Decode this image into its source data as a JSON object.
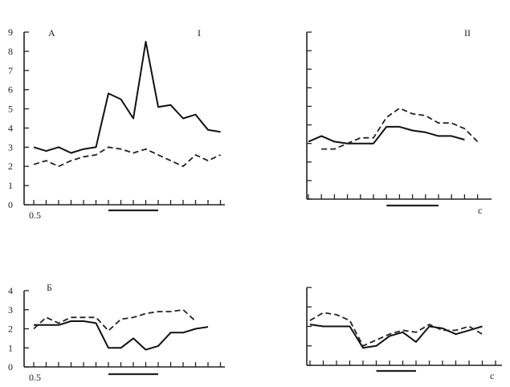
{
  "chart_data": [
    {
      "type": "line",
      "panel_label": "A",
      "roman_label": "I",
      "x_start_label": "0.5",
      "ylim": [
        0,
        9
      ],
      "yticks": [
        "0",
        "1",
        "2",
        "3",
        "4",
        "5",
        "6",
        "7",
        "8",
        "9"
      ],
      "x": [
        1,
        2,
        3,
        4,
        5,
        6,
        7,
        8,
        9,
        10,
        11,
        12,
        13,
        14,
        15,
        16,
        17,
        18,
        19
      ],
      "series": [
        {
          "style": "solid",
          "values": [
            3.0,
            2.8,
            3.0,
            2.7,
            2.9,
            3.0,
            5.8,
            5.5,
            4.5,
            8.5,
            5.1,
            5.2,
            4.5,
            4.7,
            3.9,
            3.8,
            null,
            null,
            null
          ]
        },
        {
          "style": "dashed",
          "values": [
            2.1,
            2.3,
            2.0,
            2.3,
            2.5,
            2.6,
            3.0,
            2.9,
            2.7,
            2.9,
            2.6,
            2.3,
            2.0,
            2.6,
            2.3,
            2.6,
            null,
            null,
            null
          ]
        }
      ],
      "stimulus_range": [
        7,
        11
      ]
    },
    {
      "type": "line",
      "panel_label": "",
      "roman_label": "II",
      "x_end_label": "c",
      "ylim": [
        0,
        9
      ],
      "x": [
        1,
        2,
        3,
        4,
        5,
        6,
        7,
        8,
        9,
        10,
        11,
        12,
        13,
        14,
        15,
        16,
        17,
        18,
        19
      ],
      "series": [
        {
          "style": "solid",
          "values": [
            3.1,
            3.4,
            3.1,
            3.0,
            3.0,
            3.0,
            3.9,
            3.9,
            3.7,
            3.6,
            3.4,
            3.4,
            3.2,
            null,
            null,
            null,
            null,
            null,
            null
          ]
        },
        {
          "style": "dashed",
          "values": [
            null,
            2.7,
            2.7,
            3.0,
            3.3,
            3.3,
            4.4,
            4.9,
            4.6,
            4.5,
            4.1,
            4.1,
            3.8,
            3.1,
            null,
            null,
            null,
            null,
            null
          ]
        }
      ],
      "stimulus_range": [
        7,
        11
      ]
    },
    {
      "type": "line",
      "panel_label": "Б",
      "x_start_label": "0.5",
      "ylim": [
        0,
        4
      ],
      "yticks": [
        "0",
        "1",
        "2",
        "3",
        "4"
      ],
      "x": [
        1,
        2,
        3,
        4,
        5,
        6,
        7,
        8,
        9,
        10,
        11,
        12,
        13,
        14,
        15,
        16,
        17,
        18,
        19
      ],
      "series": [
        {
          "style": "solid",
          "values": [
            2.2,
            2.2,
            2.2,
            2.4,
            2.4,
            2.3,
            1.0,
            1.0,
            1.5,
            0.9,
            1.1,
            1.8,
            1.8,
            2.0,
            2.1,
            null,
            null,
            null,
            null
          ]
        },
        {
          "style": "dashed",
          "values": [
            2.0,
            2.6,
            2.3,
            2.6,
            2.6,
            2.6,
            1.9,
            2.5,
            2.6,
            2.8,
            2.9,
            2.9,
            3.0,
            2.4,
            null,
            null,
            null,
            null,
            null
          ]
        }
      ],
      "stimulus_range": [
        7,
        11
      ]
    },
    {
      "type": "line",
      "panel_label": "",
      "x_end_label": "c",
      "ylim": [
        0,
        4
      ],
      "x": [
        1,
        2,
        3,
        4,
        5,
        6,
        7,
        8,
        9,
        10,
        11,
        12,
        13,
        14,
        15,
        16,
        17,
        18,
        19
      ],
      "series": [
        {
          "style": "solid",
          "values": [
            2.1,
            2.0,
            2.0,
            2.0,
            0.9,
            1.0,
            1.5,
            1.7,
            1.2,
            2.0,
            1.9,
            1.6,
            1.8,
            2.0,
            null,
            null,
            null,
            null,
            null
          ]
        },
        {
          "style": "dashed",
          "values": [
            2.3,
            2.7,
            2.6,
            2.3,
            1.0,
            1.3,
            1.6,
            1.8,
            1.7,
            2.1,
            1.8,
            1.8,
            2.0,
            1.6,
            null,
            null,
            null,
            null,
            null
          ]
        }
      ],
      "stimulus_range": [
        6,
        9
      ]
    }
  ]
}
